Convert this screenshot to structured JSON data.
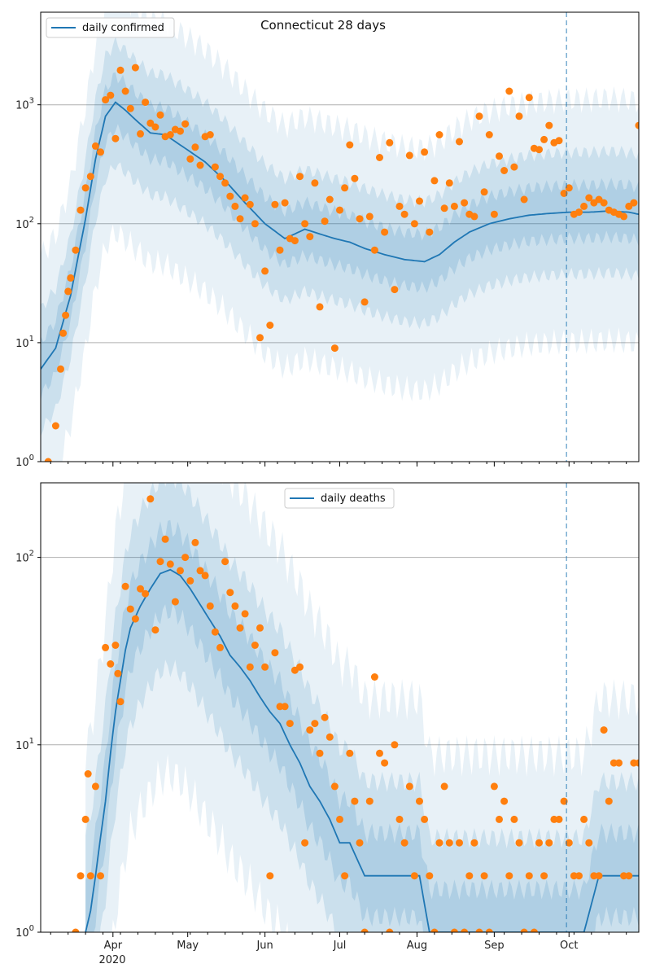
{
  "colors": {
    "model_line": "#1f77b4",
    "band": "#1f77b4",
    "observed": "#ff7f0e",
    "grid": "#b0b0b0",
    "vline": "#1f77b4"
  },
  "chart_data": [
    {
      "type": "line",
      "title": "Connecticut 28 days",
      "xlabel": "",
      "ylabel": "",
      "yscale": "log",
      "ylim": [
        1,
        6000
      ],
      "yticks": [
        1,
        10,
        100,
        1000
      ],
      "ytick_labels": [
        "10^0",
        "10^1",
        "10^2",
        "10^3"
      ],
      "grid": "horizontal",
      "legend": {
        "placement": "top-left",
        "entries": [
          "daily confirmed"
        ]
      },
      "x_labels_shown": false,
      "vline_day": 211,
      "series": [
        {
          "name": "daily confirmed",
          "role": "model median",
          "days": [
            0,
            6,
            12,
            18,
            22,
            26,
            30,
            34,
            38,
            44,
            50,
            58,
            66,
            74,
            82,
            90,
            98,
            106,
            112,
            118,
            124,
            130,
            138,
            146,
            154,
            160,
            166,
            172,
            180,
            188,
            196,
            204,
            212,
            220,
            228,
            236,
            240
          ],
          "values": [
            6,
            9,
            25,
            110,
            350,
            800,
            1050,
            900,
            750,
            580,
            560,
            430,
            330,
            230,
            150,
            100,
            75,
            90,
            82,
            75,
            70,
            62,
            55,
            50,
            48,
            55,
            70,
            85,
            100,
            110,
            118,
            122,
            125,
            125,
            128,
            125,
            120
          ]
        },
        {
          "name": "",
          "role": "observed",
          "days": [
            3,
            6,
            8,
            9,
            10,
            11,
            12,
            14,
            16,
            18,
            20,
            22,
            24,
            26,
            28,
            30,
            32,
            34,
            36,
            38,
            40,
            42,
            44,
            46,
            48,
            50,
            52,
            54,
            56,
            58,
            60,
            62,
            64,
            66,
            68,
            70,
            72,
            74,
            76,
            78,
            80,
            82,
            84,
            86,
            88,
            90,
            92,
            94,
            96,
            98,
            100,
            102,
            104,
            106,
            108,
            110,
            112,
            114,
            116,
            118,
            120,
            122,
            124,
            126,
            128,
            130,
            132,
            134,
            136,
            138,
            140,
            142,
            144,
            146,
            148,
            150,
            152,
            154,
            156,
            158,
            160,
            162,
            164,
            166,
            168,
            170,
            172,
            174,
            176,
            178,
            180,
            182,
            184,
            186,
            188,
            190,
            192,
            194,
            196,
            198,
            200,
            202,
            204,
            206,
            208,
            210,
            212,
            214,
            216,
            218,
            220,
            222,
            224,
            226,
            228,
            230,
            232,
            234,
            236,
            238,
            240
          ],
          "values": [
            1,
            2,
            6,
            12,
            17,
            27,
            35,
            60,
            130,
            200,
            250,
            450,
            400,
            1100,
            1200,
            520,
            1950,
            1300,
            930,
            2050,
            570,
            1050,
            700,
            650,
            820,
            540,
            560,
            620,
            600,
            690,
            350,
            440,
            310,
            540,
            560,
            300,
            250,
            220,
            170,
            140,
            110,
            165,
            145,
            100,
            11,
            40,
            14,
            145,
            60,
            150,
            75,
            72,
            250,
            100,
            78,
            220,
            20,
            105,
            160,
            9,
            130,
            200,
            460,
            240,
            110,
            22,
            115,
            60,
            360,
            85,
            480,
            28,
            140,
            120,
            375,
            100,
            155,
            400,
            85,
            230,
            560,
            135,
            220,
            140,
            490,
            150,
            120,
            115,
            800,
            185,
            560,
            120,
            370,
            280,
            1300,
            300,
            800,
            160,
            1150,
            430,
            420,
            510,
            670,
            480,
            500,
            180,
            200,
            120,
            125,
            140,
            165,
            150,
            160,
            150,
            130,
            125,
            120,
            115,
            140,
            150,
            670
          ]
        }
      ]
    },
    {
      "type": "line",
      "title": "",
      "xlabel": "",
      "ylabel": "",
      "yscale": "log",
      "ylim": [
        1,
        250
      ],
      "yticks": [
        1,
        10,
        100
      ],
      "ytick_labels": [
        "10^0",
        "10^1",
        "10^2"
      ],
      "grid": "horizontal",
      "legend": {
        "placement": "top-center",
        "entries": [
          "daily deaths"
        ]
      },
      "x_ticks": [
        {
          "day": 29,
          "label": "Apr"
        },
        {
          "day": 59,
          "label": "May"
        },
        {
          "day": 90,
          "label": "Jun"
        },
        {
          "day": 120,
          "label": "Jul"
        },
        {
          "day": 151,
          "label": "Aug"
        },
        {
          "day": 182,
          "label": "Sep"
        },
        {
          "day": 212,
          "label": "Oct"
        }
      ],
      "x_year_label": "2020",
      "vline_day": 211,
      "series": [
        {
          "name": "daily deaths",
          "role": "model median",
          "days": [
            18,
            20,
            22,
            24,
            26,
            28,
            30,
            32,
            34,
            36,
            40,
            44,
            48,
            52,
            56,
            60,
            64,
            68,
            72,
            76,
            80,
            84,
            88,
            92,
            96,
            100,
            104,
            108,
            112,
            116,
            120,
            124,
            130,
            136,
            140,
            146,
            152,
            156,
            160,
            166,
            176,
            186,
            196,
            206,
            210,
            218,
            224,
            232,
            240
          ],
          "values": [
            1,
            1.3,
            2,
            3.2,
            5,
            9,
            15,
            22,
            32,
            42,
            55,
            68,
            82,
            86,
            80,
            68,
            56,
            46,
            38,
            30,
            26,
            22,
            18,
            15,
            13,
            10,
            8,
            6,
            5,
            4,
            3,
            3,
            2,
            2,
            2,
            2,
            2,
            1,
            1,
            1,
            1,
            1,
            1,
            1,
            1,
            1,
            2,
            2,
            2
          ]
        },
        {
          "name": "",
          "role": "observed",
          "days": [
            14,
            16,
            18,
            19,
            20,
            22,
            24,
            26,
            28,
            30,
            31,
            32,
            34,
            36,
            38,
            40,
            42,
            44,
            46,
            48,
            50,
            52,
            54,
            56,
            58,
            60,
            62,
            64,
            66,
            68,
            70,
            72,
            74,
            76,
            78,
            80,
            82,
            84,
            86,
            88,
            90,
            92,
            94,
            96,
            98,
            100,
            102,
            104,
            106,
            108,
            110,
            112,
            114,
            116,
            118,
            120,
            122,
            124,
            126,
            128,
            130,
            132,
            134,
            136,
            138,
            140,
            142,
            144,
            146,
            148,
            150,
            152,
            154,
            156,
            158,
            160,
            162,
            164,
            166,
            168,
            170,
            172,
            174,
            176,
            178,
            180,
            182,
            184,
            186,
            188,
            190,
            192,
            194,
            196,
            198,
            200,
            202,
            204,
            206,
            208,
            210,
            212,
            214,
            216,
            218,
            220,
            222,
            224,
            226,
            228,
            230,
            232,
            234,
            236,
            238,
            240
          ],
          "values": [
            1,
            2,
            4,
            7,
            2,
            6,
            2,
            33,
            27,
            34,
            24,
            17,
            70,
            53,
            47,
            68,
            64,
            205,
            41,
            95,
            125,
            92,
            58,
            85,
            100,
            75,
            120,
            85,
            80,
            55,
            40,
            33,
            95,
            65,
            55,
            42,
            50,
            26,
            34,
            42,
            26,
            2,
            31,
            16,
            16,
            13,
            25,
            26,
            3,
            12,
            13,
            9,
            14,
            11,
            6,
            4,
            2,
            9,
            5,
            3,
            1,
            5,
            23,
            9,
            8,
            1,
            10,
            4,
            3,
            6,
            2,
            5,
            4,
            2,
            1,
            3,
            6,
            3,
            1,
            3,
            1,
            2,
            3,
            1,
            2,
            1,
            6,
            4,
            5,
            2,
            4,
            3,
            1,
            2,
            1,
            3,
            2,
            3,
            4,
            4,
            5,
            3,
            2,
            2,
            4,
            3,
            2,
            2,
            12,
            5,
            8,
            8,
            2,
            2,
            8,
            8
          ]
        }
      ]
    }
  ]
}
